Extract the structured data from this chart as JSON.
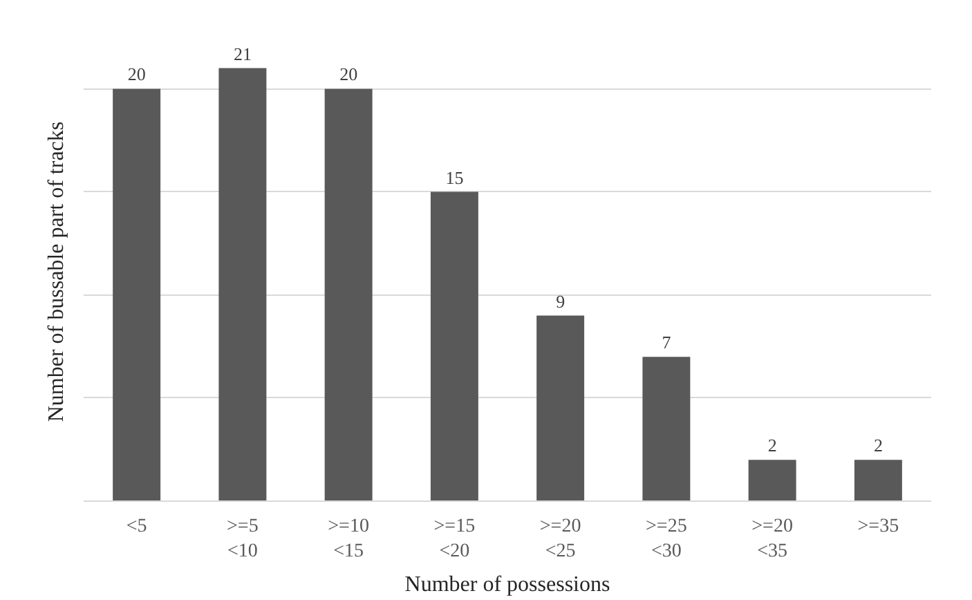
{
  "chart_data": {
    "type": "bar",
    "xlabel": "Number of possessions",
    "ylabel": "Number of bussable part of tracks",
    "categories": [
      "<5",
      ">=5\n<10",
      ">=10\n<15",
      ">=15\n<20",
      ">=20\n<25",
      ">=25\n<30",
      ">=20\n<35",
      ">=35"
    ],
    "values": [
      20,
      21,
      20,
      15,
      9,
      7,
      2,
      2
    ],
    "color": "#595959",
    "data_labels": true,
    "yticks": [
      {
        "value": 0,
        "label": null
      },
      {
        "value": 5,
        "label": null
      },
      {
        "value": 10,
        "label": null
      },
      {
        "value": 15,
        "label": null
      },
      {
        "value": 20,
        "label": null
      }
    ],
    "grid": "y",
    "tick_labels": "x"
  }
}
